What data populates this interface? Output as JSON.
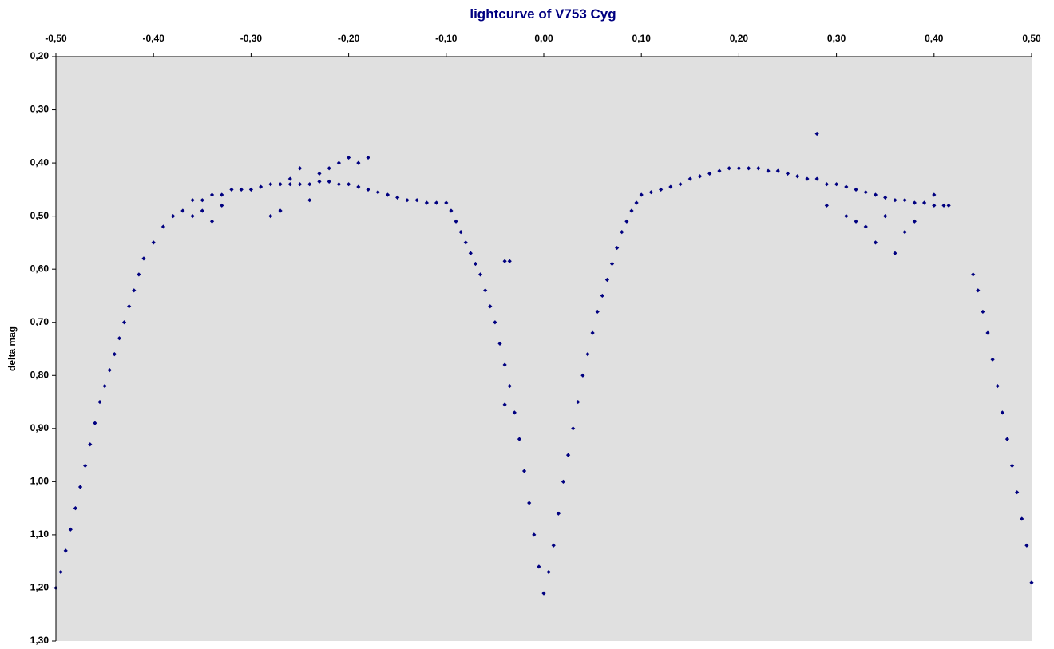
{
  "chart_data": {
    "type": "scatter",
    "title": "lightcurve of V753 Cyg",
    "xlabel": "",
    "ylabel": "delta mag",
    "xlim": [
      -0.5,
      0.5
    ],
    "ylim": [
      0.2,
      1.3
    ],
    "y_inverted": true,
    "x_axis_position": "top",
    "grid": false,
    "legend": "none",
    "plot_background": "#e0e0e0",
    "marker_color": "#000080",
    "marker": "diamond",
    "x_ticks": [
      {
        "value": -0.5,
        "label": "-0,50"
      },
      {
        "value": -0.4,
        "label": "-0,40"
      },
      {
        "value": -0.3,
        "label": "-0,30"
      },
      {
        "value": -0.2,
        "label": "-0,20"
      },
      {
        "value": -0.1,
        "label": "-0,10"
      },
      {
        "value": 0.0,
        "label": "0,00"
      },
      {
        "value": 0.1,
        "label": "0,10"
      },
      {
        "value": 0.2,
        "label": "0,20"
      },
      {
        "value": 0.3,
        "label": "0,30"
      },
      {
        "value": 0.4,
        "label": "0,40"
      },
      {
        "value": 0.5,
        "label": "0,50"
      }
    ],
    "y_ticks": [
      {
        "value": 0.2,
        "label": "0,20"
      },
      {
        "value": 0.3,
        "label": "0,30"
      },
      {
        "value": 0.4,
        "label": "0,40"
      },
      {
        "value": 0.5,
        "label": "0,50"
      },
      {
        "value": 0.6,
        "label": "0,60"
      },
      {
        "value": 0.7,
        "label": "0,70"
      },
      {
        "value": 0.8,
        "label": "0,80"
      },
      {
        "value": 0.9,
        "label": "0,90"
      },
      {
        "value": 1.0,
        "label": "1,00"
      },
      {
        "value": 1.1,
        "label": "1,10"
      },
      {
        "value": 1.2,
        "label": "1,20"
      },
      {
        "value": 1.3,
        "label": "1,30"
      }
    ],
    "series": [
      {
        "x": [
          -0.5,
          -0.495,
          -0.49,
          -0.485,
          -0.48,
          -0.475,
          -0.47,
          -0.465,
          -0.46,
          -0.455,
          -0.45,
          -0.445,
          -0.44,
          -0.435,
          -0.43,
          -0.425,
          -0.42,
          -0.415,
          -0.41,
          -0.4,
          -0.39,
          -0.38,
          -0.37,
          -0.36,
          -0.35,
          -0.34,
          -0.33,
          -0.32,
          -0.31,
          -0.3,
          -0.29,
          -0.28,
          -0.27,
          -0.26,
          -0.25,
          -0.24,
          -0.23,
          -0.22,
          -0.21,
          -0.2,
          -0.19,
          -0.18,
          -0.17,
          -0.16,
          -0.15,
          -0.14,
          -0.13,
          -0.12,
          -0.11,
          -0.1,
          -0.095,
          -0.09,
          -0.085,
          -0.08,
          -0.075,
          -0.07,
          -0.065,
          -0.06,
          -0.055,
          -0.05,
          -0.045,
          -0.04,
          -0.035,
          -0.03,
          -0.025,
          -0.02,
          -0.015,
          -0.01,
          -0.005,
          0.0,
          0.005,
          0.01,
          0.015,
          0.02,
          0.025,
          0.03,
          0.035,
          0.04,
          0.045,
          0.05,
          0.055,
          0.06,
          0.065,
          0.07,
          0.075,
          0.08,
          0.085,
          0.09,
          0.095,
          0.1,
          0.11,
          0.12,
          0.13,
          0.14,
          0.15,
          0.16,
          0.17,
          0.18,
          0.19,
          0.2,
          0.21,
          0.22,
          0.23,
          0.24,
          0.25,
          0.26,
          0.27,
          0.28,
          0.29,
          0.3,
          0.31,
          0.32,
          0.33,
          0.34,
          0.35,
          0.36,
          0.37,
          0.38,
          0.39,
          0.4,
          0.41,
          0.415,
          0.44,
          0.445,
          0.45,
          0.455,
          0.46,
          0.465,
          0.47,
          0.475,
          0.48,
          0.485,
          0.49,
          0.495,
          0.5,
          -0.36,
          -0.35,
          -0.34,
          -0.33,
          -0.28,
          -0.27,
          -0.24,
          -0.22,
          -0.21,
          -0.2,
          -0.19,
          -0.18,
          -0.23,
          -0.25,
          -0.26,
          -0.04,
          -0.035,
          -0.04,
          0.28,
          0.32,
          0.34,
          0.36,
          0.37,
          0.4,
          0.29,
          0.31,
          0.33,
          0.35,
          0.38
        ],
        "y": [
          1.2,
          1.17,
          1.13,
          1.09,
          1.05,
          1.01,
          0.97,
          0.93,
          0.89,
          0.85,
          0.82,
          0.79,
          0.76,
          0.73,
          0.7,
          0.67,
          0.64,
          0.61,
          0.58,
          0.55,
          0.52,
          0.5,
          0.49,
          0.47,
          0.47,
          0.46,
          0.46,
          0.45,
          0.45,
          0.45,
          0.445,
          0.44,
          0.44,
          0.44,
          0.44,
          0.44,
          0.435,
          0.435,
          0.44,
          0.44,
          0.445,
          0.45,
          0.455,
          0.46,
          0.465,
          0.47,
          0.47,
          0.475,
          0.475,
          0.475,
          0.49,
          0.51,
          0.53,
          0.55,
          0.57,
          0.59,
          0.61,
          0.64,
          0.67,
          0.7,
          0.74,
          0.78,
          0.82,
          0.87,
          0.92,
          0.98,
          1.04,
          1.1,
          1.16,
          1.21,
          1.17,
          1.12,
          1.06,
          1.0,
          0.95,
          0.9,
          0.85,
          0.8,
          0.76,
          0.72,
          0.68,
          0.65,
          0.62,
          0.59,
          0.56,
          0.53,
          0.51,
          0.49,
          0.475,
          0.46,
          0.455,
          0.45,
          0.445,
          0.44,
          0.43,
          0.425,
          0.42,
          0.415,
          0.41,
          0.41,
          0.41,
          0.41,
          0.415,
          0.415,
          0.42,
          0.425,
          0.43,
          0.43,
          0.44,
          0.44,
          0.445,
          0.45,
          0.455,
          0.46,
          0.465,
          0.47,
          0.47,
          0.475,
          0.475,
          0.48,
          0.48,
          0.48,
          0.61,
          0.64,
          0.68,
          0.72,
          0.77,
          0.82,
          0.87,
          0.92,
          0.97,
          1.02,
          1.07,
          1.12,
          1.19,
          0.5,
          0.49,
          0.51,
          0.48,
          0.5,
          0.49,
          0.47,
          0.41,
          0.4,
          0.39,
          0.4,
          0.39,
          0.42,
          0.41,
          0.43,
          0.585,
          0.585,
          0.855,
          0.345,
          0.51,
          0.55,
          0.57,
          0.53,
          0.46,
          0.48,
          0.5,
          0.52,
          0.5,
          0.51
        ]
      }
    ]
  }
}
